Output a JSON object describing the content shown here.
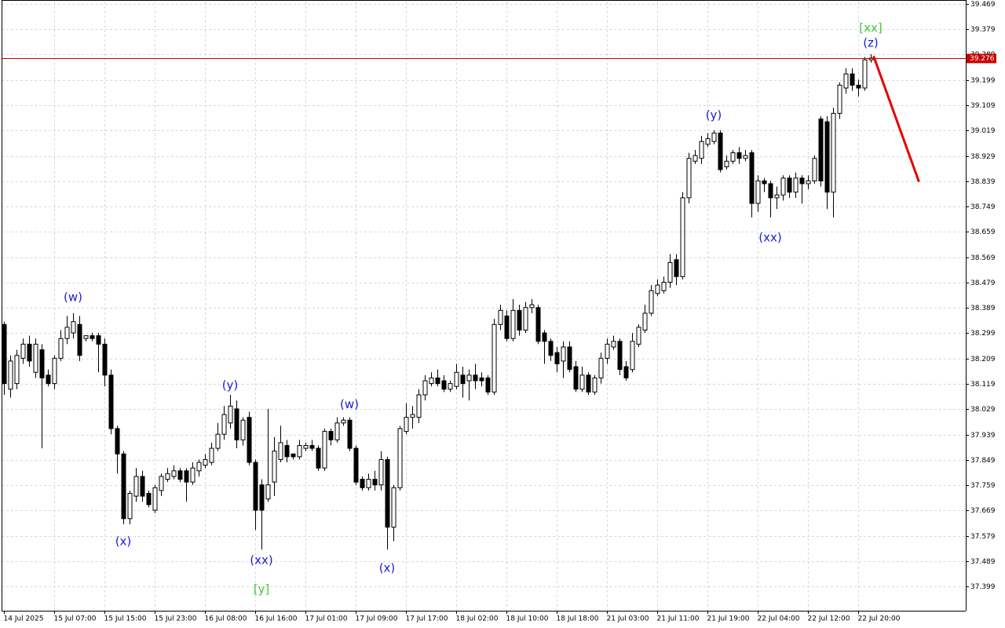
{
  "chart_data": {
    "type": "candlestick",
    "categories": [
      "14 Jul 2025",
      null,
      null,
      null,
      null,
      null,
      null,
      null,
      "15 Jul 07:00",
      null,
      null,
      null,
      null,
      null,
      null,
      null,
      "15 Jul 15:00",
      null,
      null,
      null,
      null,
      null,
      null,
      null,
      "15 Jul 23:00",
      null,
      null,
      null,
      null,
      null,
      null,
      null,
      "16 Jul 08:00",
      null,
      null,
      null,
      null,
      null,
      null,
      null,
      "16 Jul 16:00",
      null,
      null,
      null,
      null,
      null,
      null,
      null,
      "17 Jul 01:00",
      null,
      null,
      null,
      null,
      null,
      null,
      null,
      "17 Jul 09:00",
      null,
      null,
      null,
      null,
      null,
      null,
      null,
      "17 Jul 17:00",
      null,
      null,
      null,
      null,
      null,
      null,
      null,
      "18 Jul 02:00",
      null,
      null,
      null,
      null,
      null,
      null,
      null,
      "18 Jul 10:00",
      null,
      null,
      null,
      null,
      null,
      null,
      null,
      "18 Jul 18:00",
      null,
      null,
      null,
      null,
      null,
      null,
      null,
      "21 Jul 03:00",
      null,
      null,
      null,
      null,
      null,
      null,
      null,
      "21 Jul 11:00",
      null,
      null,
      null,
      null,
      null,
      null,
      null,
      "21 Jul 19:00",
      null,
      null,
      null,
      null,
      null,
      null,
      null,
      "22 Jul 04:00",
      null,
      null,
      null,
      null,
      null,
      null,
      null,
      "22 Jul 12:00",
      null,
      null,
      null,
      null,
      null,
      null,
      null,
      "22 Jul 20:00",
      null,
      null
    ],
    "open": [
      38.33,
      38.1,
      38.12,
      38.21,
      38.26,
      38.16,
      38.24,
      38.15,
      38.12,
      38.21,
      38.28,
      38.3,
      38.33,
      38.28,
      38.29,
      38.29,
      38.26,
      38.15,
      37.96,
      37.87,
      37.64,
      37.72,
      37.79,
      37.73,
      37.67,
      37.74,
      37.78,
      37.79,
      37.81,
      37.81,
      37.77,
      37.81,
      37.83,
      37.84,
      37.89,
      37.94,
      37.98,
      38.03,
      37.92,
      38.0,
      37.84,
      37.76,
      37.71,
      37.77,
      37.85,
      37.9,
      37.87,
      37.86,
      37.89,
      37.9,
      37.89,
      37.82,
      37.95,
      37.92,
      37.98,
      37.99,
      37.89,
      37.78,
      37.75,
      37.78,
      37.76,
      37.85,
      37.61,
      37.75,
      37.95,
      38.0,
      38.0,
      38.08,
      38.12,
      38.14,
      38.13,
      38.1,
      38.11,
      38.15,
      38.13,
      38.15,
      38.14,
      38.14,
      38.09,
      38.33,
      38.36,
      38.28,
      38.38,
      38.31,
      38.39,
      38.39,
      38.3,
      38.27,
      38.23,
      38.2,
      38.25,
      38.18,
      38.1,
      38.15,
      38.09,
      38.14,
      38.21,
      38.25,
      38.27,
      38.18,
      38.17,
      38.26,
      38.31,
      38.37,
      38.44,
      38.45,
      38.48,
      38.56,
      38.5,
      38.78,
      38.91,
      38.92,
      38.97,
      38.98,
      39.01,
      38.89,
      38.91,
      38.94,
      38.92,
      38.94,
      38.76,
      38.84,
      38.83,
      38.78,
      38.79,
      38.85,
      38.8,
      38.85,
      38.83,
      38.84,
      39.06,
      39.05,
      38.8,
      39.08,
      39.17,
      39.22,
      39.18,
      39.17,
      39.27
    ],
    "high": [
      38.34,
      38.22,
      38.24,
      38.28,
      38.29,
      38.28,
      38.26,
      38.17,
      38.22,
      38.31,
      38.36,
      38.37,
      38.36,
      38.29,
      38.3,
      38.3,
      38.28,
      38.17,
      37.97,
      37.88,
      37.74,
      37.82,
      37.81,
      37.74,
      37.76,
      37.8,
      37.82,
      37.83,
      37.82,
      37.82,
      37.84,
      37.85,
      37.87,
      37.91,
      37.98,
      38.04,
      38.08,
      38.06,
      38.0,
      38.02,
      37.85,
      37.78,
      38.03,
      37.93,
      37.97,
      37.92,
      37.87,
      37.92,
      37.91,
      37.92,
      37.9,
      37.96,
      37.96,
      38.0,
      38.0,
      38.0,
      37.9,
      37.79,
      37.8,
      37.81,
      37.88,
      37.86,
      37.76,
      37.97,
      38.05,
      38.04,
      38.1,
      38.15,
      38.16,
      38.17,
      38.15,
      38.13,
      38.19,
      38.18,
      38.17,
      38.19,
      38.16,
      38.15,
      38.35,
      38.4,
      38.38,
      38.42,
      38.4,
      38.41,
      38.42,
      38.4,
      38.31,
      38.28,
      38.25,
      38.27,
      38.27,
      38.2,
      38.18,
      38.16,
      38.15,
      38.23,
      38.28,
      38.29,
      38.28,
      38.2,
      38.3,
      38.33,
      38.4,
      38.47,
      38.49,
      38.5,
      38.58,
      38.58,
      38.8,
      38.94,
      38.95,
      39.0,
      39.01,
      39.02,
      39.02,
      38.93,
      38.95,
      38.96,
      38.95,
      38.95,
      38.86,
      38.85,
      38.84,
      38.82,
      38.86,
      38.86,
      38.87,
      38.86,
      38.86,
      38.93,
      39.07,
      39.07,
      39.1,
      39.19,
      39.24,
      39.24,
      39.2,
      39.28,
      39.29
    ],
    "low": [
      38.08,
      38.07,
      38.1,
      38.19,
      38.18,
      38.14,
      37.89,
      38.11,
      38.1,
      38.2,
      38.26,
      38.28,
      38.2,
      38.27,
      38.27,
      38.16,
      38.11,
      37.94,
      37.8,
      37.62,
      37.62,
      37.7,
      37.7,
      37.68,
      37.66,
      37.72,
      37.77,
      37.78,
      37.77,
      37.7,
      37.76,
      37.79,
      37.82,
      37.83,
      37.88,
      37.92,
      37.96,
      37.89,
      37.9,
      37.83,
      37.6,
      37.53,
      37.7,
      37.72,
      37.84,
      37.84,
      37.85,
      37.85,
      37.88,
      37.88,
      37.81,
      37.81,
      37.9,
      37.91,
      37.97,
      37.88,
      37.76,
      37.74,
      37.74,
      37.74,
      37.74,
      37.53,
      37.56,
      37.74,
      37.94,
      37.96,
      37.98,
      38.06,
      38.11,
      38.11,
      38.09,
      38.09,
      38.1,
      38.07,
      38.06,
      38.1,
      38.11,
      38.08,
      38.08,
      38.31,
      38.27,
      38.27,
      38.29,
      38.3,
      38.37,
      38.26,
      38.19,
      38.2,
      38.16,
      38.14,
      38.16,
      38.09,
      38.09,
      38.08,
      38.08,
      38.12,
      38.19,
      38.24,
      38.15,
      38.13,
      38.16,
      38.25,
      38.3,
      38.36,
      38.43,
      38.44,
      38.46,
      38.47,
      38.49,
      38.76,
      38.9,
      38.9,
      38.96,
      38.97,
      38.87,
      38.88,
      38.9,
      38.9,
      38.91,
      38.71,
      38.73,
      38.8,
      38.71,
      38.74,
      38.77,
      38.78,
      38.78,
      38.76,
      38.81,
      38.83,
      38.82,
      38.74,
      38.71,
      39.06,
      39.15,
      39.16,
      39.14,
      39.16,
      39.26
    ],
    "close": [
      38.12,
      38.2,
      38.22,
      38.26,
      38.2,
      38.26,
      38.14,
      38.12,
      38.21,
      38.28,
      38.32,
      38.34,
      38.22,
      38.29,
      38.28,
      38.26,
      38.15,
      37.96,
      37.87,
      37.64,
      37.73,
      37.79,
      37.72,
      37.69,
      37.75,
      37.79,
      37.8,
      37.81,
      37.78,
      37.77,
      37.82,
      37.84,
      37.85,
      37.89,
      37.94,
      38.01,
      38.04,
      37.92,
      37.99,
      37.84,
      37.67,
      37.67,
      37.76,
      37.88,
      37.91,
      37.86,
      37.86,
      37.9,
      37.9,
      37.89,
      37.82,
      37.95,
      37.92,
      37.98,
      37.99,
      37.89,
      37.77,
      37.75,
      37.78,
      37.76,
      37.85,
      37.61,
      37.75,
      37.96,
      38.0,
      38.01,
      38.08,
      38.13,
      38.14,
      38.12,
      38.1,
      38.12,
      38.16,
      38.12,
      38.15,
      38.13,
      38.13,
      38.09,
      38.33,
      38.38,
      38.28,
      38.38,
      38.31,
      38.39,
      38.4,
      38.27,
      38.27,
      38.22,
      38.19,
      38.25,
      38.17,
      38.1,
      38.15,
      38.09,
      38.14,
      38.21,
      38.26,
      38.27,
      38.17,
      38.14,
      38.27,
      38.32,
      38.37,
      38.45,
      38.47,
      38.48,
      38.55,
      38.5,
      38.78,
      38.92,
      38.93,
      38.98,
      38.99,
      39.01,
      38.88,
      38.91,
      38.94,
      38.92,
      38.93,
      38.76,
      38.84,
      38.83,
      38.78,
      38.79,
      38.85,
      38.8,
      38.85,
      38.83,
      38.84,
      38.92,
      38.84,
      38.8,
      39.08,
      39.18,
      39.22,
      39.18,
      39.17,
      39.27,
      39.276
    ],
    "ylim": [
      37.313,
      39.477
    ],
    "yticks": [
      39.469,
      39.379,
      39.289,
      39.199,
      39.109,
      39.019,
      38.929,
      38.839,
      38.749,
      38.659,
      38.569,
      38.479,
      38.389,
      38.299,
      38.209,
      38.119,
      38.029,
      37.939,
      37.849,
      37.759,
      37.669,
      37.579,
      37.489,
      37.399
    ],
    "grid": true,
    "current_price": 39.276,
    "current_price_color": "#c80000",
    "projection": {
      "color": "#e60000",
      "values": [
        39.28,
        38.84
      ]
    },
    "wave_labels": [
      {
        "text": "(w)",
        "color": "#1c1cd4"
      },
      {
        "text": "(x)",
        "color": "#1c1cd4"
      },
      {
        "text": "(y)",
        "color": "#1c1cd4"
      },
      {
        "text": "(xx)",
        "color": "#1c1cd4"
      },
      {
        "text": "[y]",
        "color": "#3cc83c"
      },
      {
        "text": "(w)",
        "color": "#1c1cd4"
      },
      {
        "text": "(x)",
        "color": "#1c1cd4"
      },
      {
        "text": "(y)",
        "color": "#1c1cd4"
      },
      {
        "text": "(xx)",
        "color": "#1c1cd4"
      },
      {
        "text": "(z)",
        "color": "#1c1cd4"
      },
      {
        "text": "[xx]",
        "color": "#3cc83c"
      }
    ]
  }
}
